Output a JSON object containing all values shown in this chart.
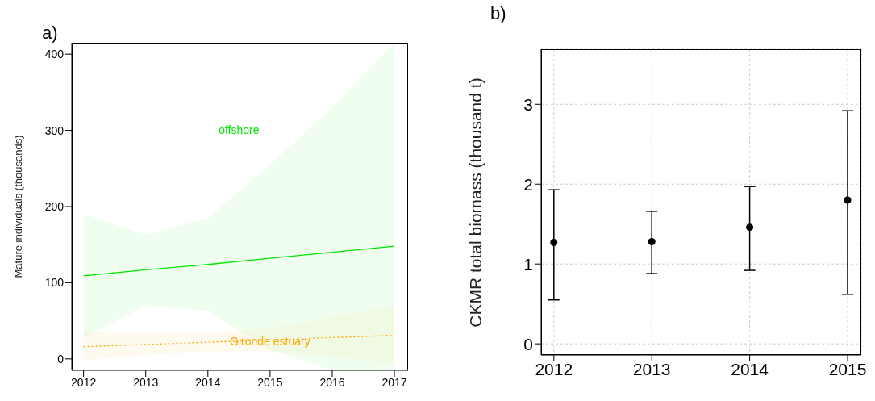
{
  "chart_data": [
    {
      "type": "line",
      "title": "a)",
      "ylabel": "Mature individuals (thousands)",
      "x": [
        2012,
        2013,
        2014,
        2015,
        2016,
        2017
      ],
      "xlim": [
        2011.81,
        2017.22
      ],
      "xticks": [
        2012,
        2013,
        2014,
        2015,
        2016,
        2017
      ],
      "ylim": [
        -15,
        415
      ],
      "yticks": [
        0,
        100,
        200,
        300,
        400
      ],
      "grid": false,
      "legend": false,
      "marker": "none",
      "series": [
        {
          "name": "offshore",
          "color": "#00e600",
          "line_style": "solid",
          "values": [
            109,
            117,
            124,
            132,
            140,
            148
          ],
          "lower": [
            28,
            70,
            63,
            12,
            -15,
            -15
          ],
          "upper": [
            190,
            163,
            185,
            255,
            330,
            415
          ]
        },
        {
          "name": "Gironde estuary",
          "color": "#ffa500",
          "line_style": "dotted",
          "values": [
            16,
            19,
            22,
            25,
            28,
            31
          ],
          "lower": [
            -2,
            5,
            10,
            10,
            3,
            -6
          ],
          "upper": [
            35,
            35,
            35,
            40,
            55,
            70
          ]
        }
      ]
    },
    {
      "type": "scatter",
      "title": "b)",
      "ylabel": "CKMR total biomass (thousand t)",
      "x": [
        2012,
        2013,
        2014,
        2015
      ],
      "xlim": [
        2011.87,
        2015.14
      ],
      "xticks": [
        2012,
        2013,
        2014,
        2015
      ],
      "ylim": [
        -0.14,
        3.69
      ],
      "yticks": [
        0,
        1,
        2,
        3
      ],
      "grid": true,
      "legend": false,
      "marker": "circle",
      "series": [
        {
          "color": "#000000",
          "values": [
            1.27,
            1.28,
            1.46,
            1.8
          ],
          "errors": [
            [
              0.55,
              1.93
            ],
            [
              0.88,
              1.66
            ],
            [
              0.92,
              1.97
            ],
            [
              0.62,
              2.92
            ]
          ]
        }
      ]
    }
  ]
}
